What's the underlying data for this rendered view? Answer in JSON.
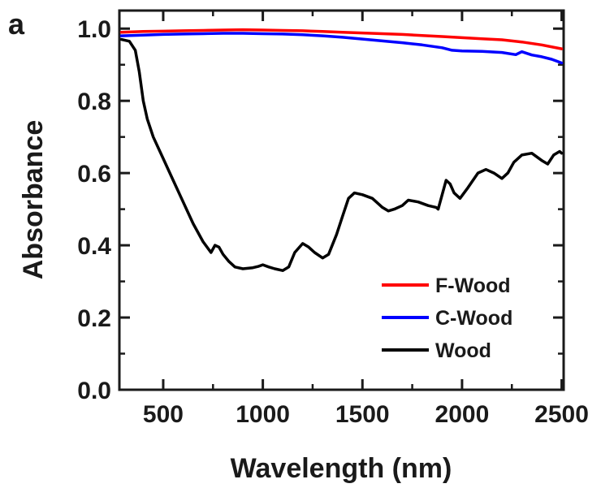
{
  "panel_label": "a",
  "chart_data": {
    "type": "line",
    "xlabel": "Wavelength (nm)",
    "ylabel": "Absorbance",
    "xlim": [
      280,
      2510
    ],
    "ylim": [
      0.0,
      1.05
    ],
    "x_ticks": [
      500,
      1000,
      1500,
      2000,
      2500
    ],
    "y_ticks": [
      0.0,
      0.2,
      0.4,
      0.6,
      0.8,
      1.0
    ],
    "x_tick_labels": [
      "500",
      "1000",
      "1500",
      "2000",
      "2500"
    ],
    "y_tick_labels": [
      "0.0",
      "0.2",
      "0.4",
      "0.6",
      "0.8",
      "1.0"
    ],
    "legend_position": "lower-right",
    "series": [
      {
        "name": "F-Wood",
        "color": "#ff0000",
        "points": [
          [
            290,
            0.99
          ],
          [
            400,
            0.992
          ],
          [
            500,
            0.993
          ],
          [
            600,
            0.994
          ],
          [
            700,
            0.995
          ],
          [
            800,
            0.996
          ],
          [
            900,
            0.997
          ],
          [
            1000,
            0.996
          ],
          [
            1100,
            0.995
          ],
          [
            1200,
            0.994
          ],
          [
            1300,
            0.992
          ],
          [
            1400,
            0.99
          ],
          [
            1500,
            0.988
          ],
          [
            1600,
            0.986
          ],
          [
            1700,
            0.984
          ],
          [
            1800,
            0.981
          ],
          [
            1900,
            0.978
          ],
          [
            2000,
            0.975
          ],
          [
            2100,
            0.972
          ],
          [
            2200,
            0.969
          ],
          [
            2300,
            0.963
          ],
          [
            2400,
            0.955
          ],
          [
            2500,
            0.944
          ]
        ]
      },
      {
        "name": "C-Wood",
        "color": "#0000ff",
        "points": [
          [
            290,
            0.98
          ],
          [
            400,
            0.982
          ],
          [
            500,
            0.984
          ],
          [
            600,
            0.985
          ],
          [
            700,
            0.986
          ],
          [
            800,
            0.987
          ],
          [
            900,
            0.987
          ],
          [
            1000,
            0.986
          ],
          [
            1100,
            0.985
          ],
          [
            1200,
            0.983
          ],
          [
            1300,
            0.98
          ],
          [
            1400,
            0.976
          ],
          [
            1500,
            0.971
          ],
          [
            1600,
            0.966
          ],
          [
            1700,
            0.961
          ],
          [
            1800,
            0.955
          ],
          [
            1900,
            0.947
          ],
          [
            1950,
            0.94
          ],
          [
            2000,
            0.938
          ],
          [
            2100,
            0.937
          ],
          [
            2200,
            0.934
          ],
          [
            2270,
            0.928
          ],
          [
            2300,
            0.936
          ],
          [
            2350,
            0.927
          ],
          [
            2400,
            0.922
          ],
          [
            2450,
            0.915
          ],
          [
            2500,
            0.905
          ]
        ]
      },
      {
        "name": "Wood",
        "color": "#000000",
        "points": [
          [
            290,
            0.97
          ],
          [
            330,
            0.965
          ],
          [
            360,
            0.94
          ],
          [
            380,
            0.88
          ],
          [
            400,
            0.8
          ],
          [
            420,
            0.75
          ],
          [
            450,
            0.7
          ],
          [
            500,
            0.64
          ],
          [
            550,
            0.58
          ],
          [
            600,
            0.52
          ],
          [
            650,
            0.46
          ],
          [
            700,
            0.41
          ],
          [
            740,
            0.38
          ],
          [
            760,
            0.4
          ],
          [
            780,
            0.395
          ],
          [
            800,
            0.375
          ],
          [
            830,
            0.355
          ],
          [
            860,
            0.34
          ],
          [
            900,
            0.335
          ],
          [
            950,
            0.338
          ],
          [
            980,
            0.342
          ],
          [
            1000,
            0.346
          ],
          [
            1030,
            0.34
          ],
          [
            1060,
            0.335
          ],
          [
            1100,
            0.33
          ],
          [
            1130,
            0.34
          ],
          [
            1160,
            0.38
          ],
          [
            1200,
            0.405
          ],
          [
            1230,
            0.395
          ],
          [
            1260,
            0.38
          ],
          [
            1300,
            0.365
          ],
          [
            1330,
            0.375
          ],
          [
            1370,
            0.43
          ],
          [
            1400,
            0.48
          ],
          [
            1430,
            0.53
          ],
          [
            1460,
            0.545
          ],
          [
            1500,
            0.54
          ],
          [
            1550,
            0.53
          ],
          [
            1600,
            0.505
          ],
          [
            1630,
            0.495
          ],
          [
            1660,
            0.5
          ],
          [
            1700,
            0.51
          ],
          [
            1730,
            0.525
          ],
          [
            1780,
            0.52
          ],
          [
            1830,
            0.51
          ],
          [
            1870,
            0.505
          ],
          [
            1880,
            0.5
          ],
          [
            1900,
            0.54
          ],
          [
            1920,
            0.58
          ],
          [
            1940,
            0.57
          ],
          [
            1960,
            0.545
          ],
          [
            1990,
            0.53
          ],
          [
            2030,
            0.56
          ],
          [
            2080,
            0.6
          ],
          [
            2120,
            0.61
          ],
          [
            2160,
            0.6
          ],
          [
            2200,
            0.585
          ],
          [
            2230,
            0.6
          ],
          [
            2260,
            0.63
          ],
          [
            2300,
            0.65
          ],
          [
            2350,
            0.655
          ],
          [
            2400,
            0.635
          ],
          [
            2430,
            0.625
          ],
          [
            2460,
            0.65
          ],
          [
            2490,
            0.66
          ],
          [
            2500,
            0.655
          ]
        ]
      }
    ]
  }
}
